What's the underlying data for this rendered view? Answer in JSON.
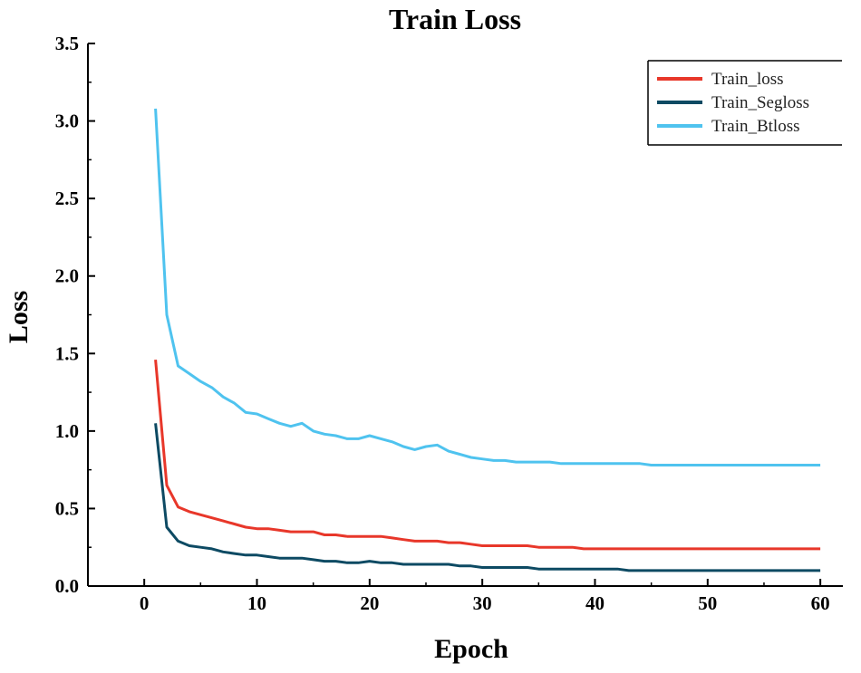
{
  "chart_data": {
    "type": "line",
    "title": "Train  Loss",
    "xlabel": "Epoch",
    "ylabel": "Loss",
    "xlim": [
      -5,
      62
    ],
    "ylim": [
      0,
      3.5
    ],
    "xticks": [
      0,
      10,
      20,
      30,
      40,
      50,
      60
    ],
    "xtick_labels": [
      "0",
      "10",
      "20",
      "30",
      "40",
      "50",
      "60"
    ],
    "yticks": [
      0,
      0.5,
      1.0,
      1.5,
      2.0,
      2.5,
      3.0,
      3.5
    ],
    "ytick_labels": [
      "0.0",
      "0.5",
      "1.0",
      "1.5",
      "2.0",
      "2.5",
      "3.0",
      "3.5"
    ],
    "grid": false,
    "legend_position": "top-right",
    "x": [
      1,
      2,
      3,
      4,
      5,
      6,
      7,
      8,
      9,
      10,
      11,
      12,
      13,
      14,
      15,
      16,
      17,
      18,
      19,
      20,
      21,
      22,
      23,
      24,
      25,
      26,
      27,
      28,
      29,
      30,
      31,
      32,
      33,
      34,
      35,
      36,
      37,
      38,
      39,
      40,
      41,
      42,
      43,
      44,
      45,
      46,
      47,
      48,
      49,
      50,
      51,
      52,
      53,
      54,
      55,
      56,
      57,
      58,
      59,
      60
    ],
    "series": [
      {
        "name": "Train_loss",
        "color": "#e8372a",
        "values": [
          1.46,
          0.65,
          0.51,
          0.48,
          0.46,
          0.44,
          0.42,
          0.4,
          0.38,
          0.37,
          0.37,
          0.36,
          0.35,
          0.35,
          0.35,
          0.33,
          0.33,
          0.32,
          0.32,
          0.32,
          0.32,
          0.31,
          0.3,
          0.29,
          0.29,
          0.29,
          0.28,
          0.28,
          0.27,
          0.26,
          0.26,
          0.26,
          0.26,
          0.26,
          0.25,
          0.25,
          0.25,
          0.25,
          0.24,
          0.24,
          0.24,
          0.24,
          0.24,
          0.24,
          0.24,
          0.24,
          0.24,
          0.24,
          0.24,
          0.24,
          0.24,
          0.24,
          0.24,
          0.24,
          0.24,
          0.24,
          0.24,
          0.24,
          0.24,
          0.24
        ]
      },
      {
        "name": "Train_Segloss",
        "color": "#0d4a63",
        "values": [
          1.05,
          0.38,
          0.29,
          0.26,
          0.25,
          0.24,
          0.22,
          0.21,
          0.2,
          0.2,
          0.19,
          0.18,
          0.18,
          0.18,
          0.17,
          0.16,
          0.16,
          0.15,
          0.15,
          0.16,
          0.15,
          0.15,
          0.14,
          0.14,
          0.14,
          0.14,
          0.14,
          0.13,
          0.13,
          0.12,
          0.12,
          0.12,
          0.12,
          0.12,
          0.11,
          0.11,
          0.11,
          0.11,
          0.11,
          0.11,
          0.11,
          0.11,
          0.1,
          0.1,
          0.1,
          0.1,
          0.1,
          0.1,
          0.1,
          0.1,
          0.1,
          0.1,
          0.1,
          0.1,
          0.1,
          0.1,
          0.1,
          0.1,
          0.1,
          0.1
        ]
      },
      {
        "name": "Train_Btloss",
        "color": "#4fc3ef",
        "values": [
          3.08,
          1.75,
          1.42,
          1.37,
          1.32,
          1.28,
          1.22,
          1.18,
          1.12,
          1.11,
          1.08,
          1.05,
          1.03,
          1.05,
          1.0,
          0.98,
          0.97,
          0.95,
          0.95,
          0.97,
          0.95,
          0.93,
          0.9,
          0.88,
          0.9,
          0.91,
          0.87,
          0.85,
          0.83,
          0.82,
          0.81,
          0.81,
          0.8,
          0.8,
          0.8,
          0.8,
          0.79,
          0.79,
          0.79,
          0.79,
          0.79,
          0.79,
          0.79,
          0.79,
          0.78,
          0.78,
          0.78,
          0.78,
          0.78,
          0.78,
          0.78,
          0.78,
          0.78,
          0.78,
          0.78,
          0.78,
          0.78,
          0.78,
          0.78,
          0.78
        ]
      }
    ]
  }
}
